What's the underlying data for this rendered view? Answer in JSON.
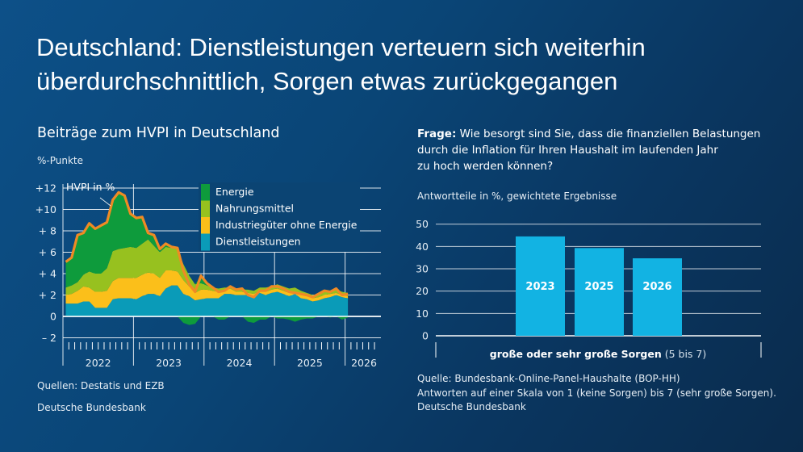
{
  "header": {
    "title_line1": "Deutschland: Dienstleistungen verteuern sich weiterhin",
    "title_line2": "überdurchschnittlich, Sorgen etwas zurückgegangen"
  },
  "left": {
    "subtitle": "Beiträge zum HVPI in Deutschland",
    "unit": "%-Punkte",
    "source": "Quellen: Destatis und EZB",
    "publisher": "Deutsche Bundesbank"
  },
  "right": {
    "question_label": "Frage:",
    "question_line1": "Wie besorgt sind Sie, dass die finanziellen Belastungen",
    "question_line2": "durch die Inflation für Ihren Haushalt im laufenden Jahr",
    "question_line3": "zu hoch werden können?",
    "unit": "Antwortteile in %, gewichtete Ergebnisse",
    "source": "Quelle: Bundesbank-Online-Panel-Haushalte (BOP-HH)",
    "note": "Antworten auf einer Skala von 1 (keine Sorgen) bis 7 (sehr große Sorgen).",
    "publisher": "Deutsche Bundesbank"
  },
  "chart_data": [
    {
      "type": "area",
      "title": "Beiträge zum HVPI in Deutschland",
      "ylabel": "%-Punkte",
      "ylim": [
        -2,
        12
      ],
      "yticks": [
        "– 2",
        "0",
        "+ 2",
        "+ 4",
        "+ 6",
        "+ 8",
        "+10",
        "+12"
      ],
      "yticks_values": [
        -2,
        0,
        2,
        4,
        6,
        8,
        10,
        12
      ],
      "x_start": "2022-01",
      "x_frequency": "monthly",
      "xtick_labels": [
        "2022",
        "2023",
        "2024",
        "2025",
        "2026"
      ],
      "grid": true,
      "legend_placement": "top-center",
      "line_annotation": "HVPI in %",
      "series": [
        {
          "name": "Dienstleistungen",
          "color": "#0a9bb8",
          "values": [
            1.2,
            1.2,
            1.2,
            1.4,
            1.4,
            0.8,
            0.8,
            0.8,
            1.6,
            1.7,
            1.7,
            1.7,
            1.6,
            1.9,
            2.1,
            2.1,
            1.9,
            2.6,
            2.9,
            2.9,
            2.1,
            1.9,
            1.5,
            1.6,
            1.7,
            1.7,
            1.7,
            2.1,
            2.1,
            2.0,
            2.0,
            2.0,
            1.8,
            2.2,
            2.0,
            2.2,
            2.3,
            2.1,
            1.9,
            2.1,
            1.7,
            1.6,
            1.4,
            1.5,
            1.7,
            1.8,
            2.0,
            1.8,
            1.7
          ]
        },
        {
          "name": "Industriegüter ohne Energie",
          "color": "#fbbf1a",
          "values": [
            0.8,
            0.9,
            1.2,
            1.4,
            1.3,
            1.5,
            1.5,
            1.6,
            1.7,
            1.9,
            1.9,
            1.9,
            2.0,
            2.0,
            2.0,
            1.9,
            1.7,
            1.7,
            1.4,
            1.3,
            1.3,
            0.9,
            0.7,
            0.9,
            0.8,
            0.7,
            0.6,
            0.4,
            0.5,
            0.3,
            0.3,
            0.2,
            0.3,
            0.2,
            0.3,
            0.3,
            0.3,
            0.3,
            0.3,
            0.2,
            0.3,
            0.3,
            0.3,
            0.3,
            0.3,
            0.3,
            0.2,
            0.2,
            0.2
          ]
        },
        {
          "name": "Nahrungsmittel",
          "color": "#97c11f",
          "values": [
            0.7,
            0.8,
            0.8,
            1.1,
            1.5,
            1.7,
            1.7,
            2.1,
            2.8,
            2.7,
            2.8,
            2.9,
            2.8,
            2.9,
            3.1,
            2.6,
            2.4,
            2.2,
            2.1,
            2.1,
            1.5,
            1.0,
            0.8,
            0.6,
            0.4,
            0.3,
            0.3,
            0.2,
            0.1,
            0.2,
            0.2,
            0.3,
            0.3,
            0.3,
            0.4,
            0.3,
            0.4,
            0.4,
            0.4,
            0.4,
            0.4,
            0.3,
            0.3,
            0.3,
            0.3,
            0.3,
            0.3,
            0.3,
            0.3
          ]
        },
        {
          "name": "Energie",
          "color": "#0e9b3c",
          "values": [
            2.4,
            2.6,
            4.4,
            3.9,
            4.5,
            4.2,
            4.5,
            4.3,
            4.8,
            5.3,
            4.9,
            3.1,
            2.8,
            2.5,
            0.6,
            1.0,
            0.3,
            0.3,
            0.1,
            0.1,
            -0.6,
            -0.8,
            -0.7,
            0.7,
            0.2,
            0.0,
            -0.3,
            -0.3,
            0.1,
            0.0,
            0.1,
            -0.5,
            -0.6,
            -0.3,
            -0.3,
            0.0,
            -0.2,
            -0.2,
            -0.3,
            -0.5,
            -0.3,
            -0.2,
            -0.2,
            0.0,
            0.1,
            -0.1,
            0.1,
            -0.3,
            -0.1
          ]
        },
        {
          "name": "HVPI in %",
          "color": "#f08a24",
          "type": "line",
          "values": [
            5.1,
            5.5,
            7.6,
            7.8,
            8.7,
            8.2,
            8.5,
            8.8,
            10.9,
            11.6,
            11.3,
            9.6,
            9.2,
            9.3,
            7.8,
            7.6,
            6.3,
            6.8,
            6.5,
            6.4,
            4.3,
            3.0,
            2.3,
            3.8,
            3.1,
            2.7,
            2.3,
            2.4,
            2.8,
            2.5,
            2.6,
            2.0,
            1.8,
            2.4,
            2.4,
            2.8,
            2.8,
            2.6,
            2.3,
            2.2,
            2.1,
            2.0,
            1.8,
            2.1,
            2.4,
            2.3,
            2.6,
            2.0,
            2.1
          ]
        }
      ]
    },
    {
      "type": "bar",
      "ylabel": "Antwortteile in %, gewichtete Ergebnisse",
      "ylim": [
        0,
        50
      ],
      "yticks": [
        "0",
        "10",
        "20",
        "30",
        "40",
        "50"
      ],
      "xlabel_bold": "große oder sehr große Sorgen",
      "xlabel_rest": "(5 bis 7)",
      "categories": [
        "2023",
        "2025",
        "2026"
      ],
      "values": [
        44.5,
        39.3,
        34.7
      ],
      "bar_color": "#12b3e3",
      "grid": true
    }
  ]
}
